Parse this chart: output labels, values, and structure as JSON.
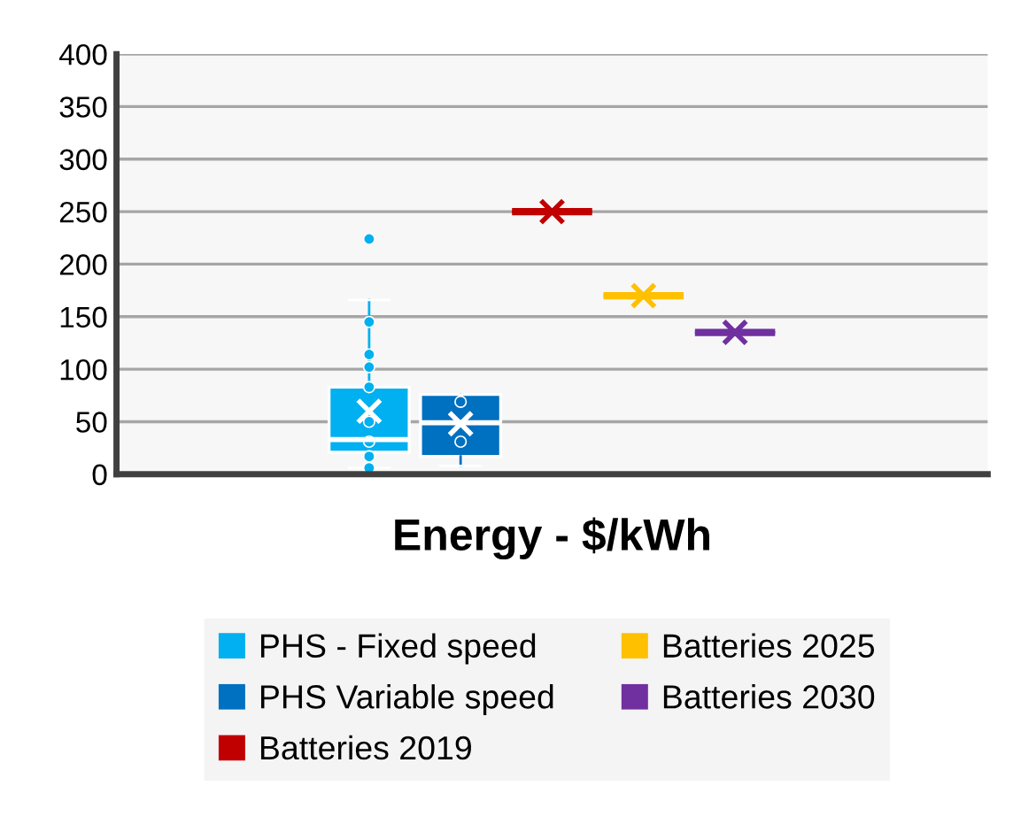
{
  "chart_data": {
    "type": "box",
    "xlabel": "Energy - $/kWh",
    "categories": [
      null
    ],
    "ylim": [
      0,
      400
    ],
    "yticks": [
      0,
      50,
      100,
      150,
      200,
      250,
      300,
      350,
      400
    ],
    "grid": "y",
    "legend": "bottom",
    "series": [
      {
        "name": "PHS - Fixed speed",
        "color": "#00b0f0",
        "boxes": [
          {
            "low": 6,
            "q1": 21,
            "median": 33,
            "q3": 83,
            "high": 166,
            "mean": 60,
            "outliers": [
              224,
              145,
              114,
              102,
              83,
              50,
              31,
              17,
              6
            ]
          }
        ]
      },
      {
        "name": "PHS Variable speed",
        "color": "#0070c0",
        "boxes": [
          {
            "low": 8,
            "q1": 17,
            "median": 49,
            "q3": 76,
            "high": 76,
            "mean": 48,
            "outliers": [
              69,
              31
            ]
          }
        ]
      },
      {
        "name": "Batteries 2019",
        "color": "#c00000",
        "boxes": [
          {
            "low": 250,
            "q1": 250,
            "median": 250,
            "q3": 250,
            "high": 250,
            "mean": 250
          }
        ]
      },
      {
        "name": "Batteries 2025",
        "color": "#ffc000",
        "boxes": [
          {
            "low": 170,
            "q1": 170,
            "median": 170,
            "q3": 170,
            "high": 170,
            "mean": 170
          }
        ]
      },
      {
        "name": "Batteries 2030",
        "color": "#7030a0",
        "boxes": [
          {
            "low": 135,
            "q1": 135,
            "median": 135,
            "q3": 135,
            "high": 135,
            "mean": 135
          }
        ]
      }
    ]
  }
}
